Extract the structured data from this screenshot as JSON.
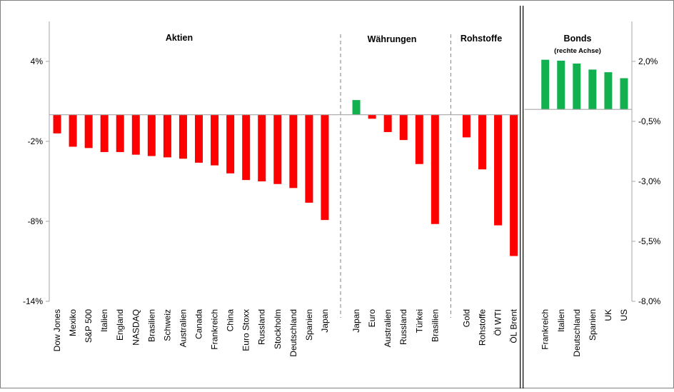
{
  "colors": {
    "negative": "#ff0000",
    "positive": "#13b050",
    "axis": "#a6a6a6",
    "frame": "#808080",
    "separator": "#000000"
  },
  "chart_data": {
    "type": "bar",
    "left_axis": {
      "ticks": [
        4,
        -2,
        -8,
        -14
      ],
      "tick_labels": [
        "4%",
        "-2%",
        "-8%",
        "-14%"
      ],
      "ylim": [
        -14,
        4
      ]
    },
    "right_axis": {
      "ticks": [
        2.0,
        -0.5,
        -3.0,
        -5.5,
        -8.0
      ],
      "tick_labels": [
        "2,0%",
        "-0,5%",
        "-3,0%",
        "-5,5%",
        "-8,0%"
      ],
      "ylim": [
        -8.0,
        2.0
      ]
    },
    "grid": false,
    "legend": "none",
    "groups": [
      {
        "title": "Aktien",
        "axis": "left",
        "categories": [
          "Dow Jones",
          "Mexiko",
          "S&P 500",
          "Italien",
          "England",
          "NASDAQ",
          "Brasilien",
          "Schweiz",
          "Australien",
          "Canada",
          "Frankreich",
          "China",
          "Euro Stoxx",
          "Russland",
          "Stockholm",
          "Deutschland",
          "Spanien",
          "Japan"
        ],
        "values": [
          -1.4,
          -2.4,
          -2.5,
          -2.8,
          -2.8,
          -3.0,
          -3.1,
          -3.2,
          -3.3,
          -3.6,
          -3.8,
          -4.4,
          -4.9,
          -5.0,
          -5.2,
          -5.5,
          -6.6,
          -7.9
        ]
      },
      {
        "title": "Währungen",
        "axis": "left",
        "categories": [
          "Japan",
          "Euro",
          "Australien",
          "Russland",
          "Türkei",
          "Brasilien"
        ],
        "values": [
          1.1,
          -0.3,
          -1.3,
          -1.9,
          -3.7,
          -8.2
        ]
      },
      {
        "title": "Rohstoffe",
        "axis": "left",
        "categories": [
          "Gold",
          "Rohstoffe",
          "Öl WTI",
          "ÖL Brent"
        ],
        "values": [
          -1.7,
          -4.1,
          -8.3,
          -10.6
        ]
      },
      {
        "title": "Bonds",
        "subtitle": "(rechte Achse)",
        "axis": "right",
        "categories": [
          "Frankreich",
          "Italien",
          "Deutschland",
          "Spanien",
          "UK",
          "US"
        ],
        "values": [
          2.07,
          2.03,
          1.91,
          1.66,
          1.55,
          1.3
        ]
      }
    ]
  }
}
